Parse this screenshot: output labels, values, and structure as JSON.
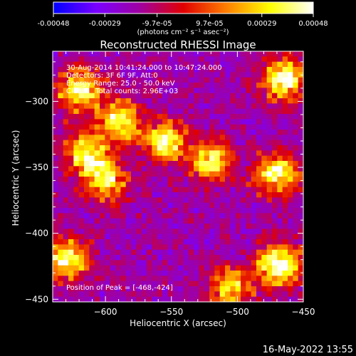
{
  "colorbar": {
    "ticks": [
      "-0.00048",
      "-0.00029",
      "-9.7e-05",
      "9.7e-05",
      "0.00029",
      "0.00048"
    ],
    "tick_values": [
      -0.00048,
      -0.00029,
      -9.7e-05,
      9.7e-05,
      0.00029,
      0.00048
    ],
    "range": [
      -0.00048,
      0.00048
    ],
    "unit_label": "(photons cm⁻² s⁻¹ asec⁻²)",
    "stops": [
      "#0000ff",
      "#7a00ff",
      "#a000a0",
      "#e00000",
      "#ff8000",
      "#ffff00",
      "#ffffff"
    ]
  },
  "footer": {
    "timestamp": "16-May-2022 13:55"
  },
  "chart_data": {
    "type": "heatmap",
    "title": "Reconstructed RHESSI Image",
    "xlabel": "Heliocentric X (arcsec)",
    "ylabel": "Heliocentric Y (arcsec)",
    "xlim": [
      -640,
      -450
    ],
    "ylim": [
      -452,
      -262
    ],
    "xticks": [
      -600,
      -550,
      -500,
      -450
    ],
    "xtick_labels": [
      "−600",
      "−550",
      "−500",
      "−450"
    ],
    "yticks": [
      -300,
      -350,
      -400,
      -450
    ],
    "ytick_labels": [
      "−300",
      "−350",
      "−400",
      "−450"
    ],
    "annotations": [
      "30-Aug-2014 10:41:24.000 to 10:47:24.000",
      "Detectors: 3F 6F 9F, Att:0",
      "Energy Range: 25.0 - 50.0 keV",
      "Clean    Total counts: 2.96E+03"
    ],
    "peak_label": "Position of Peak = [-468,-424]",
    "peak_position": [
      -468,
      -424
    ],
    "bright_regions": [
      {
        "x": -468,
        "y": -424,
        "level": 1.0
      },
      {
        "x": -465,
        "y": -283,
        "level": 0.9
      },
      {
        "x": -620,
        "y": -292,
        "level": 0.85
      },
      {
        "x": -590,
        "y": -315,
        "level": 0.8
      },
      {
        "x": -555,
        "y": -330,
        "level": 0.8
      },
      {
        "x": -520,
        "y": -345,
        "level": 0.75
      },
      {
        "x": -615,
        "y": -340,
        "level": 0.8
      },
      {
        "x": -600,
        "y": -360,
        "level": 0.75
      },
      {
        "x": -470,
        "y": -355,
        "level": 0.85
      },
      {
        "x": -630,
        "y": -420,
        "level": 0.8
      },
      {
        "x": -505,
        "y": -442,
        "level": 0.7
      }
    ]
  }
}
